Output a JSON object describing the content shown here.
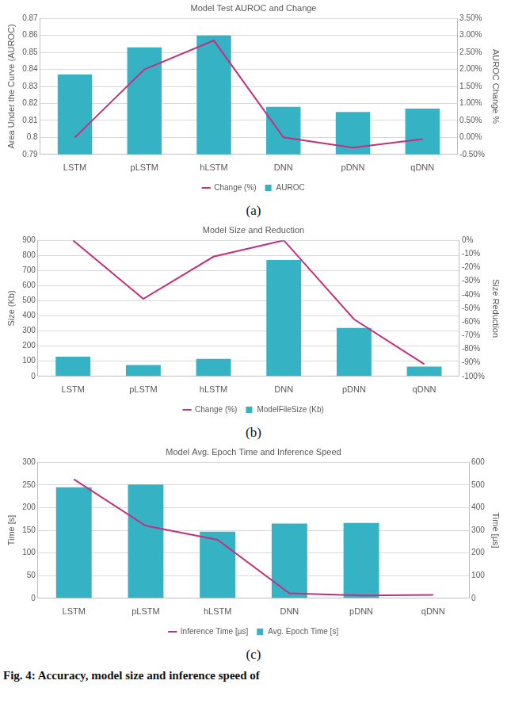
{
  "chart_data": [
    {
      "type": "bar",
      "title": "Model Test AUROC and Change",
      "caption": "(a)",
      "categories": [
        "LSTM",
        "pLSTM",
        "hLSTM",
        "DNN",
        "pDNN",
        "qDNN"
      ],
      "ylabel": "Area Under the Curve (AUROC)",
      "y2label": "AUROC Change %",
      "series": [
        {
          "name": "AUROC",
          "type": "bar",
          "color": "#35b3c4",
          "values": [
            0.837,
            0.853,
            0.86,
            0.818,
            0.815,
            0.817
          ]
        },
        {
          "name": "Change (%)",
          "type": "line",
          "axis": "y2",
          "color": "#c2307e",
          "values": [
            0,
            2.0,
            2.85,
            0,
            -0.3,
            -0.05
          ]
        }
      ],
      "ylim": [
        0.79,
        0.87
      ],
      "yticks": [
        0.79,
        {
          "value": 0.8,
          "label": "0.8"
        },
        0.81,
        0.82,
        0.83,
        0.84,
        0.85,
        0.86,
        0.87
      ],
      "y2lim": [
        -0.5,
        3.5
      ],
      "y2ticks": [
        {
          "value": -0.5,
          "label": "-0.50%"
        },
        {
          "value": 0,
          "label": "0.00%"
        },
        {
          "value": 0.5,
          "label": "0.50%"
        },
        {
          "value": 1,
          "label": "1.00%"
        },
        {
          "value": 1.5,
          "label": "1.50%"
        },
        {
          "value": 2,
          "label": "2.00%"
        },
        {
          "value": 2.5,
          "label": "2.50%"
        },
        {
          "value": 3,
          "label": "3.00%"
        },
        {
          "value": 3.5,
          "label": "3.50%"
        }
      ],
      "grid": true,
      "legend": "bottom"
    },
    {
      "type": "bar",
      "title": "Model Size and Reduction",
      "caption": "(b)",
      "categories": [
        "LSTM",
        "pLSTM",
        "hLSTM",
        "DNN",
        "pDNN",
        "qDNN"
      ],
      "ylabel": "Size (Kb)",
      "y2label": "Size Reduction",
      "series": [
        {
          "name": "ModelFileSize (Kb)",
          "type": "bar",
          "color": "#35b3c4",
          "values": [
            130,
            75,
            115,
            770,
            320,
            65
          ]
        },
        {
          "name": "Change (%)",
          "type": "line",
          "axis": "y2",
          "color": "#c2307e",
          "values": [
            0,
            -43,
            -12,
            0,
            -58,
            -91
          ]
        }
      ],
      "ylim": [
        0,
        900
      ],
      "yticks": [
        0,
        100,
        200,
        300,
        400,
        500,
        600,
        700,
        800,
        900
      ],
      "y2lim": [
        -100,
        0
      ],
      "y2ticks": [
        {
          "value": -100,
          "label": "-100%"
        },
        {
          "value": -90,
          "label": "-90%"
        },
        {
          "value": -80,
          "label": "-80%"
        },
        {
          "value": -70,
          "label": "-70%"
        },
        {
          "value": -60,
          "label": "-60%"
        },
        {
          "value": -50,
          "label": "-50%"
        },
        {
          "value": -40,
          "label": "-40%"
        },
        {
          "value": -30,
          "label": "-30%"
        },
        {
          "value": -20,
          "label": "-20%"
        },
        {
          "value": -10,
          "label": "-10%"
        },
        {
          "value": 0,
          "label": "0%"
        }
      ],
      "grid": true,
      "legend": "bottom"
    },
    {
      "type": "bar",
      "title": "Model Avg. Epoch Time and Inference Speed",
      "caption": "(c)",
      "categories": [
        "LSTM",
        "pLSTM",
        "hLSTM",
        "DNN",
        "pDNN",
        "qDNN"
      ],
      "ylabel": "Time [s]",
      "y2label": "Time [µs]",
      "series": [
        {
          "name": "Avg. Epoch Time [s]",
          "type": "bar",
          "color": "#35b3c4",
          "values": [
            245,
            251,
            147,
            165,
            166,
            null
          ]
        },
        {
          "name": "Inference Time [µs]",
          "type": "line",
          "axis": "y2",
          "color": "#c2307e",
          "values": [
            525,
            320,
            258,
            22,
            12,
            15
          ]
        }
      ],
      "ylim": [
        0,
        300
      ],
      "yticks": [
        0,
        50,
        100,
        150,
        200,
        250,
        300
      ],
      "y2lim": [
        0,
        600
      ],
      "y2ticks": [
        0,
        100,
        200,
        300,
        400,
        500,
        600
      ],
      "grid": true,
      "legend": "bottom"
    }
  ],
  "figure_caption": "Fig. 4: Accuracy, model size and inference speed of"
}
